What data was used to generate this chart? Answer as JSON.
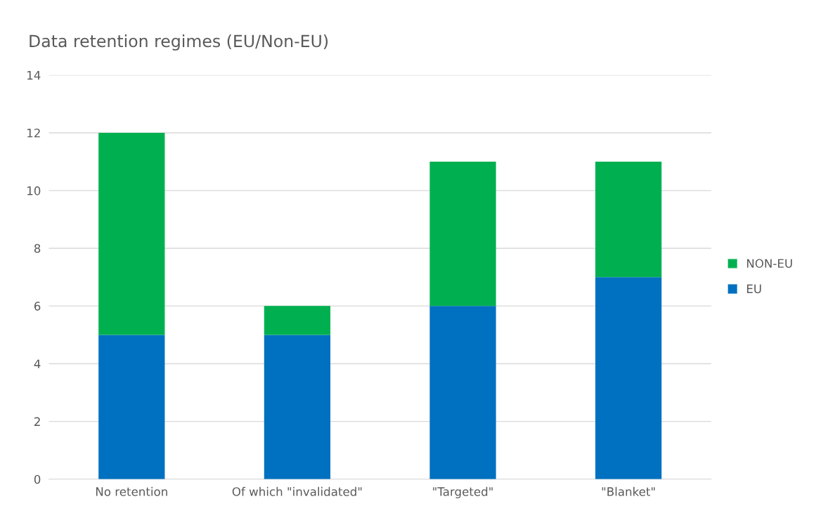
{
  "chart_data": {
    "type": "bar",
    "title": "Data retention regimes (EU/Non-EU)",
    "categories": [
      "No retention",
      "Of which \"invalidated\"",
      "\"Targeted\"",
      "\"Blanket\""
    ],
    "series": [
      {
        "name": "EU",
        "color": "#0070c0",
        "values": [
          5,
          5,
          6,
          7
        ]
      },
      {
        "name": "NON-EU",
        "color": "#00b050",
        "values": [
          7,
          1,
          5,
          4
        ]
      }
    ],
    "stacked": true,
    "ylim": [
      0,
      14
    ],
    "yticks": [
      0,
      2,
      4,
      6,
      8,
      10,
      12,
      14
    ],
    "grid": "y",
    "legend": "right"
  }
}
